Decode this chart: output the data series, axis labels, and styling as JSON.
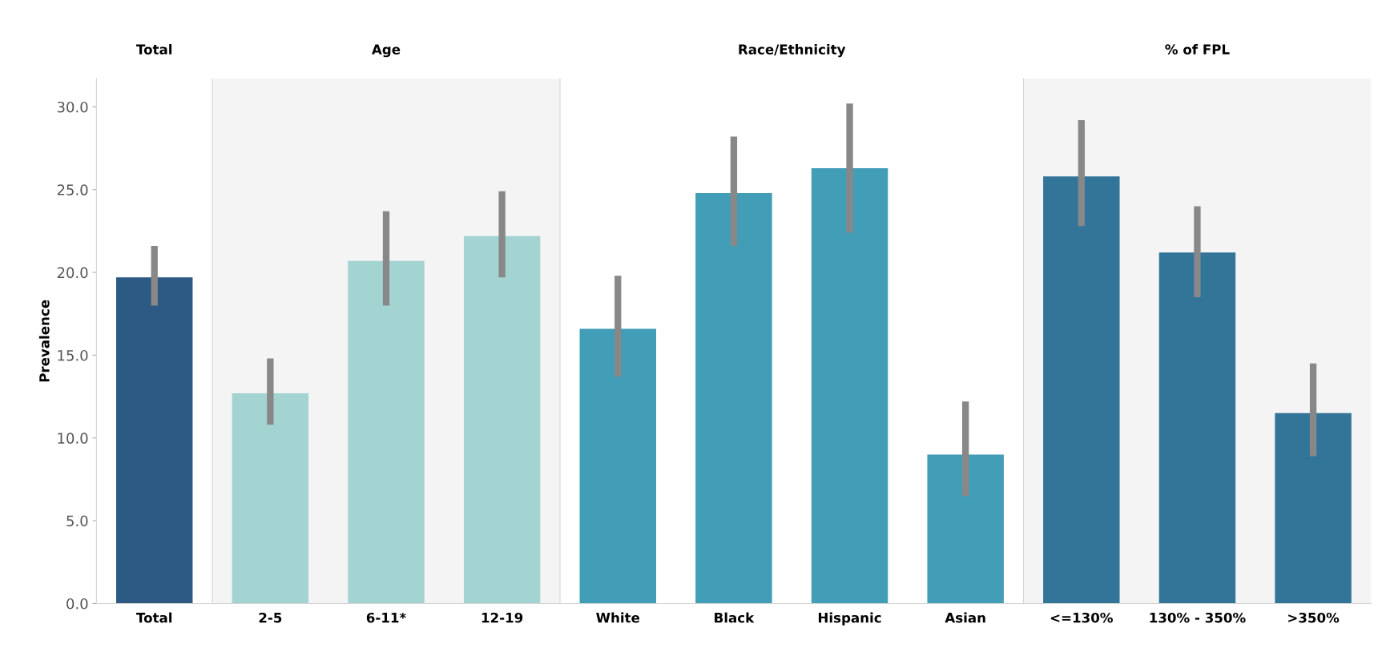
{
  "chart_data": [
    {
      "type": "bar",
      "title": "Total",
      "ylabel": "Prevalence",
      "categories": [
        "Total"
      ],
      "values": [
        19.7
      ],
      "errors": [
        [
          18.0,
          21.6
        ]
      ],
      "colors": [
        "#2d5985"
      ],
      "ylim": [
        0,
        31.7
      ],
      "yticks": [
        {
          "value": 0,
          "label": "0.0"
        },
        {
          "value": 5,
          "label": "5.0"
        },
        {
          "value": 10,
          "label": "10.0"
        },
        {
          "value": 15,
          "label": "15.0"
        },
        {
          "value": 20,
          "label": "20.0"
        },
        {
          "value": 25,
          "label": "25.0"
        },
        {
          "value": 30,
          "label": "30.0"
        }
      ]
    },
    {
      "type": "bar",
      "title": "Age",
      "categories": [
        "2-5",
        "6-11*",
        "12-19"
      ],
      "values": [
        12.7,
        20.7,
        22.2
      ],
      "errors": [
        [
          10.8,
          14.8
        ],
        [
          18.0,
          23.7
        ],
        [
          19.7,
          24.9
        ]
      ],
      "colors": [
        "#a3d4d1",
        "#a3d4d1",
        "#a3d4d1"
      ],
      "ylim": [
        0,
        31.7
      ],
      "tick_labels": "x"
    },
    {
      "type": "bar",
      "title": "Race/Ethnicity",
      "categories": [
        "White",
        "Black",
        "Hispanic",
        "Asian"
      ],
      "values": [
        16.6,
        24.8,
        26.3,
        9.0
      ],
      "errors": [
        [
          13.7,
          19.8
        ],
        [
          21.6,
          28.2
        ],
        [
          22.4,
          30.2
        ],
        [
          6.5,
          12.2
        ]
      ],
      "colors": [
        "#429db7",
        "#429db7",
        "#429db7",
        "#429db7"
      ],
      "ylim": [
        0,
        31.7
      ],
      "tick_labels": "x"
    },
    {
      "type": "bar",
      "title": "% of FPL",
      "categories": [
        "<=130%",
        "130% - 350%",
        ">350%"
      ],
      "values": [
        25.8,
        21.2,
        11.5
      ],
      "errors": [
        [
          22.8,
          29.2
        ],
        [
          18.5,
          24.0
        ],
        [
          8.9,
          14.5
        ]
      ],
      "colors": [
        "#327599",
        "#327599",
        "#327599"
      ],
      "ylim": [
        0,
        31.7
      ],
      "tick_labels": "x"
    }
  ]
}
